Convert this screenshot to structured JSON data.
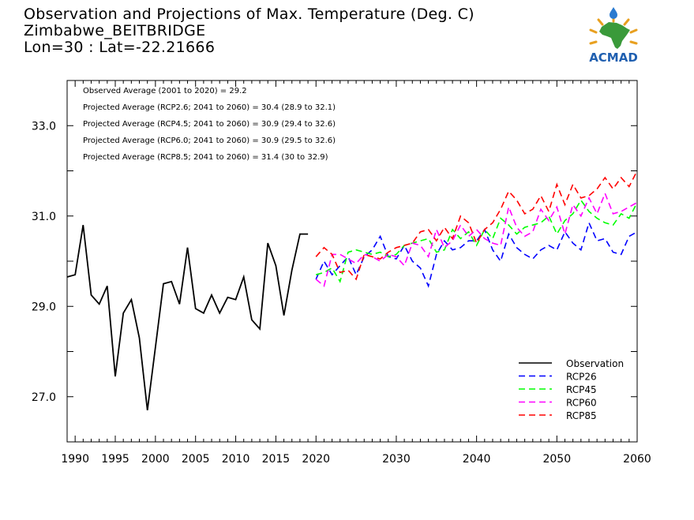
{
  "header": {
    "title": "Observation and Projections of Max. Temperature (Deg. C)",
    "station": "Zimbabwe_BEITBRIDGE",
    "coords": "Lon=30 : Lat=-22.21666"
  },
  "logo": {
    "text": "ACMAD",
    "icon": "africa-map-logo-icon",
    "colors": {
      "sun": "#e8a020",
      "africa": "#3a9a3a",
      "text": "#1f5fb0",
      "drop": "#2a7ad0"
    }
  },
  "chart_data": {
    "type": "line",
    "xlim": [
      1989,
      2060
    ],
    "ylim": [
      26.0,
      34.0
    ],
    "x_ticks": [
      1990,
      1995,
      2000,
      2005,
      2010,
      2015,
      2020,
      2030,
      2040,
      2050,
      2060
    ],
    "y_ticks": [
      "27.0",
      "29.0",
      "31.0",
      "33.0"
    ],
    "annotations": [
      "Observed Average (2001 to 2020) = 29.2",
      "Projected Average (RCP2.6; 2041 to 2060) = 30.4 (28.9 to 32.1)",
      "Projected Average (RCP4.5; 2041 to 2060) = 30.9 (29.4 to 32.6)",
      "Projected Average (RCP6.0; 2041 to 2060) = 30.9 (29.5 to 32.6)",
      "Projected Average (RCP8.5; 2041 to 2060) = 31.4 (30 to 32.9)"
    ],
    "legend_position": "bottom-right",
    "series": [
      {
        "name": "Observation",
        "color": "#000000",
        "dashed": false,
        "x": [
          1989,
          1990,
          1991,
          1992,
          1993,
          1994,
          1995,
          1996,
          1997,
          1998,
          1999,
          2000,
          2001,
          2002,
          2003,
          2004,
          2005,
          2006,
          2007,
          2008,
          2009,
          2010,
          2011,
          2012,
          2013,
          2014,
          2015,
          2016,
          2017,
          2018,
          2019
        ],
        "values": [
          29.65,
          29.7,
          30.8,
          29.25,
          29.05,
          29.45,
          27.45,
          28.85,
          29.15,
          28.3,
          26.7,
          28.1,
          29.5,
          29.55,
          29.05,
          30.3,
          28.95,
          28.85,
          29.25,
          28.85,
          29.2,
          29.15,
          29.65,
          28.7,
          28.5,
          30.4,
          29.9,
          28.8,
          29.8,
          30.6,
          30.6
        ]
      },
      {
        "name": "RCP26",
        "color": "#0000ff",
        "dashed": true,
        "x": [
          2020,
          2021,
          2022,
          2023,
          2024,
          2025,
          2026,
          2027,
          2028,
          2029,
          2030,
          2031,
          2032,
          2033,
          2034,
          2035,
          2036,
          2037,
          2038,
          2039,
          2040,
          2041,
          2042,
          2043,
          2044,
          2045,
          2046,
          2047,
          2048,
          2049,
          2050,
          2051,
          2052,
          2053,
          2054,
          2055,
          2056,
          2057,
          2058,
          2059,
          2060
        ],
        "values": [
          29.6,
          30.0,
          29.7,
          29.9,
          30.1,
          29.7,
          30.1,
          30.25,
          30.55,
          30.1,
          30.05,
          30.35,
          30.0,
          29.85,
          29.45,
          30.15,
          30.45,
          30.25,
          30.3,
          30.45,
          30.45,
          30.7,
          30.25,
          30.0,
          30.6,
          30.3,
          30.15,
          30.05,
          30.25,
          30.35,
          30.25,
          30.65,
          30.4,
          30.25,
          30.85,
          30.45,
          30.5,
          30.2,
          30.15,
          30.55,
          30.65
        ]
      },
      {
        "name": "RCP45",
        "color": "#00ff00",
        "dashed": true,
        "x": [
          2020,
          2021,
          2022,
          2023,
          2024,
          2025,
          2026,
          2027,
          2028,
          2029,
          2030,
          2031,
          2032,
          2033,
          2034,
          2035,
          2036,
          2037,
          2038,
          2039,
          2040,
          2041,
          2042,
          2043,
          2044,
          2045,
          2046,
          2047,
          2048,
          2049,
          2050,
          2051,
          2052,
          2053,
          2054,
          2055,
          2056,
          2057,
          2058,
          2059,
          2060
        ],
        "values": [
          29.7,
          29.75,
          29.85,
          29.55,
          30.2,
          30.25,
          30.2,
          30.15,
          30.2,
          30.1,
          30.15,
          30.35,
          30.4,
          30.45,
          30.5,
          30.2,
          30.25,
          30.7,
          30.5,
          30.65,
          30.35,
          30.7,
          30.5,
          30.95,
          30.8,
          30.6,
          30.75,
          30.8,
          30.85,
          31.0,
          30.6,
          30.9,
          31.05,
          31.35,
          31.1,
          30.95,
          30.85,
          30.8,
          31.05,
          30.95,
          31.3
        ]
      },
      {
        "name": "RCP60",
        "color": "#ff00ff",
        "dashed": true,
        "x": [
          2020,
          2021,
          2022,
          2023,
          2024,
          2025,
          2026,
          2027,
          2028,
          2029,
          2030,
          2031,
          2032,
          2033,
          2034,
          2035,
          2036,
          2037,
          2038,
          2039,
          2040,
          2041,
          2042,
          2043,
          2044,
          2045,
          2046,
          2047,
          2048,
          2049,
          2050,
          2051,
          2052,
          2053,
          2054,
          2055,
          2056,
          2057,
          2058,
          2059,
          2060
        ],
        "values": [
          29.6,
          29.45,
          30.15,
          30.15,
          30.05,
          29.95,
          30.15,
          30.1,
          30.0,
          30.15,
          30.1,
          29.9,
          30.4,
          30.35,
          30.1,
          30.7,
          30.3,
          30.45,
          30.8,
          30.55,
          30.7,
          30.5,
          30.4,
          30.35,
          31.2,
          30.75,
          30.55,
          30.65,
          31.15,
          30.9,
          31.2,
          30.6,
          31.25,
          31.0,
          31.4,
          31.05,
          31.5,
          31.05,
          31.1,
          31.2,
          31.3
        ]
      },
      {
        "name": "RCP85",
        "color": "#ff0000",
        "dashed": true,
        "x": [
          2020,
          2021,
          2022,
          2023,
          2024,
          2025,
          2026,
          2027,
          2028,
          2029,
          2030,
          2031,
          2032,
          2033,
          2034,
          2035,
          2036,
          2037,
          2038,
          2039,
          2040,
          2041,
          2042,
          2043,
          2044,
          2045,
          2046,
          2047,
          2048,
          2049,
          2050,
          2051,
          2052,
          2053,
          2054,
          2055,
          2056,
          2057,
          2058,
          2059,
          2060
        ],
        "values": [
          30.1,
          30.3,
          30.15,
          29.75,
          29.8,
          29.6,
          30.15,
          30.1,
          30.05,
          30.2,
          30.3,
          30.35,
          30.4,
          30.65,
          30.7,
          30.45,
          30.75,
          30.5,
          31.0,
          30.85,
          30.4,
          30.7,
          30.85,
          31.15,
          31.55,
          31.35,
          31.05,
          31.15,
          31.45,
          31.1,
          31.7,
          31.25,
          31.7,
          31.4,
          31.45,
          31.6,
          31.85,
          31.6,
          31.85,
          31.65,
          32.0
        ]
      }
    ]
  }
}
